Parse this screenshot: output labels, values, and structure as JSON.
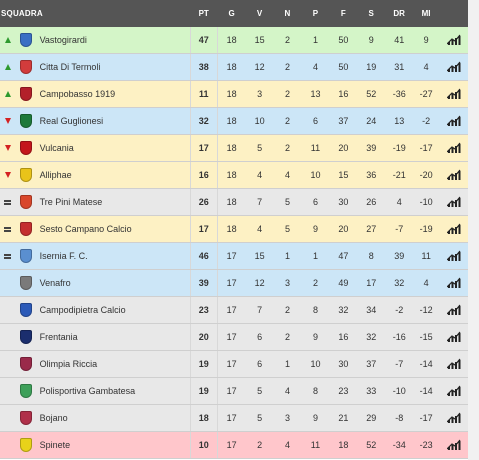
{
  "header": {
    "team": "SQUADRA",
    "pt": "PT",
    "g": "G",
    "v": "V",
    "n": "N",
    "p": "P",
    "f": "F",
    "s": "S",
    "dr": "DR",
    "mi": "MI"
  },
  "colors": {
    "green": "#d4f5c8",
    "blue": "#cce6f7",
    "yellow": "#fdf1c4",
    "gray": "#e8e8e8",
    "red": "#ffc6cb"
  },
  "rows": [
    {
      "status": "up",
      "bg": "green",
      "crest": "#3a6fc4",
      "name": "Vastogirardi",
      "pt": "47",
      "g": "18",
      "v": "15",
      "n": "2",
      "p": "1",
      "f": "50",
      "s": "9",
      "dr": "41",
      "mi": "9"
    },
    {
      "status": "up",
      "bg": "blue",
      "crest": "#d23c3c",
      "name": "Citta Di Termoli",
      "pt": "38",
      "g": "18",
      "v": "12",
      "n": "2",
      "p": "4",
      "f": "50",
      "s": "19",
      "dr": "31",
      "mi": "4"
    },
    {
      "status": "up",
      "bg": "yellow",
      "crest": "#b3202a",
      "name": "Campobasso 1919",
      "pt": "11",
      "g": "18",
      "v": "3",
      "n": "2",
      "p": "13",
      "f": "16",
      "s": "52",
      "dr": "-36",
      "mi": "-27"
    },
    {
      "status": "down",
      "bg": "blue",
      "crest": "#1e7a3a",
      "name": "Real Guglionesi",
      "pt": "32",
      "g": "18",
      "v": "10",
      "n": "2",
      "p": "6",
      "f": "37",
      "s": "24",
      "dr": "13",
      "mi": "-2"
    },
    {
      "status": "down",
      "bg": "yellow",
      "crest": "#c4161c",
      "name": "Vulcania",
      "pt": "17",
      "g": "18",
      "v": "5",
      "n": "2",
      "p": "11",
      "f": "20",
      "s": "39",
      "dr": "-19",
      "mi": "-17"
    },
    {
      "status": "down",
      "bg": "yellow",
      "crest": "#e9c31a",
      "name": "Alliphae",
      "pt": "16",
      "g": "18",
      "v": "4",
      "n": "4",
      "p": "10",
      "f": "15",
      "s": "36",
      "dr": "-21",
      "mi": "-20"
    },
    {
      "status": "eq",
      "bg": "gray",
      "crest": "#d9472b",
      "name": "Tre Pini Matese",
      "pt": "26",
      "g": "18",
      "v": "7",
      "n": "5",
      "p": "6",
      "f": "30",
      "s": "26",
      "dr": "4",
      "mi": "-10"
    },
    {
      "status": "eq",
      "bg": "yellow",
      "crest": "#c42f2f",
      "name": "Sesto Campano Calcio",
      "pt": "17",
      "g": "18",
      "v": "4",
      "n": "5",
      "p": "9",
      "f": "20",
      "s": "27",
      "dr": "-7",
      "mi": "-19"
    },
    {
      "status": "eq",
      "bg": "blue",
      "crest": "#5a8fd0",
      "name": "Isernia F. C.",
      "pt": "46",
      "g": "17",
      "v": "15",
      "n": "1",
      "p": "1",
      "f": "47",
      "s": "8",
      "dr": "39",
      "mi": "11"
    },
    {
      "status": "none",
      "bg": "blue",
      "crest": "#7a7a7a",
      "name": "Venafro",
      "pt": "39",
      "g": "17",
      "v": "12",
      "n": "3",
      "p": "2",
      "f": "49",
      "s": "17",
      "dr": "32",
      "mi": "4"
    },
    {
      "status": "none",
      "bg": "gray",
      "crest": "#2c5ab8",
      "name": "Campodipietra Calcio",
      "pt": "23",
      "g": "17",
      "v": "7",
      "n": "2",
      "p": "8",
      "f": "32",
      "s": "34",
      "dr": "-2",
      "mi": "-12"
    },
    {
      "status": "none",
      "bg": "gray",
      "crest": "#1b2e6e",
      "name": "Frentania",
      "pt": "20",
      "g": "17",
      "v": "6",
      "n": "2",
      "p": "9",
      "f": "16",
      "s": "32",
      "dr": "-16",
      "mi": "-15"
    },
    {
      "status": "none",
      "bg": "gray",
      "crest": "#9a2a4a",
      "name": "Olimpia Riccia",
      "pt": "19",
      "g": "17",
      "v": "6",
      "n": "1",
      "p": "10",
      "f": "30",
      "s": "37",
      "dr": "-7",
      "mi": "-14"
    },
    {
      "status": "none",
      "bg": "gray",
      "crest": "#3ea05a",
      "name": "Polisportiva Gambatesa",
      "pt": "19",
      "g": "17",
      "v": "5",
      "n": "4",
      "p": "8",
      "f": "23",
      "s": "33",
      "dr": "-10",
      "mi": "-14"
    },
    {
      "status": "none",
      "bg": "gray",
      "crest": "#b0304a",
      "name": "Bojano",
      "pt": "18",
      "g": "17",
      "v": "5",
      "n": "3",
      "p": "9",
      "f": "21",
      "s": "29",
      "dr": "-8",
      "mi": "-17"
    },
    {
      "status": "none",
      "bg": "red",
      "crest": "#e8d21a",
      "name": "Spinete",
      "pt": "10",
      "g": "17",
      "v": "2",
      "n": "4",
      "p": "11",
      "f": "18",
      "s": "52",
      "dr": "-34",
      "mi": "-23"
    }
  ]
}
